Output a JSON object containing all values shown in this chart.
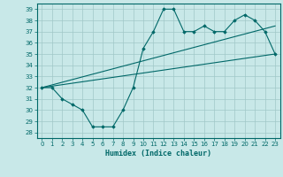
{
  "xlabel": "Humidex (Indice chaleur)",
  "background_color": "#c8e8e8",
  "grid_color": "#a0c8c8",
  "line_color": "#006868",
  "xlim": [
    -0.5,
    23.5
  ],
  "ylim": [
    27.5,
    39.5
  ],
  "yticks": [
    28,
    29,
    30,
    31,
    32,
    33,
    34,
    35,
    36,
    37,
    38,
    39
  ],
  "xticks": [
    0,
    1,
    2,
    3,
    4,
    5,
    6,
    7,
    8,
    9,
    10,
    11,
    12,
    13,
    14,
    15,
    16,
    17,
    18,
    19,
    20,
    21,
    22,
    23
  ],
  "series1": {
    "x": [
      0,
      1,
      2,
      3,
      4,
      5,
      6,
      7,
      8,
      9,
      10,
      11,
      12,
      13,
      14,
      15,
      16,
      17,
      18,
      19,
      20,
      21,
      22,
      23
    ],
    "y": [
      32,
      32,
      31,
      30.5,
      30,
      28.5,
      28.5,
      28.5,
      30,
      32,
      35.5,
      37,
      39,
      39,
      37,
      37,
      37.5,
      37,
      37,
      38,
      38.5,
      38,
      37,
      35
    ]
  },
  "series2_linear": {
    "x": [
      0,
      23
    ],
    "y": [
      32,
      35
    ]
  },
  "series3_linear": {
    "x": [
      0,
      23
    ],
    "y": [
      32,
      37.5
    ]
  }
}
